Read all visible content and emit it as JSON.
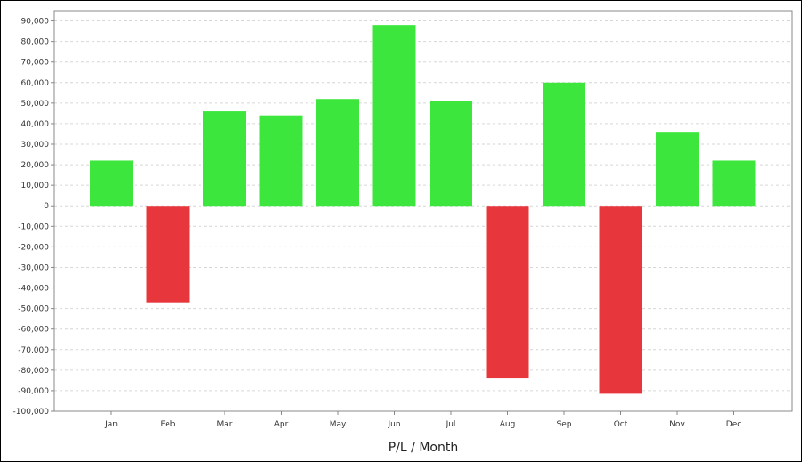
{
  "chart_data": {
    "type": "bar",
    "title": "",
    "xlabel": "P/L / Month",
    "ylabel": "",
    "categories": [
      "Jan",
      "Feb",
      "Mar",
      "Apr",
      "May",
      "Jun",
      "Jul",
      "Aug",
      "Sep",
      "Oct",
      "Nov",
      "Dec"
    ],
    "values": [
      22000,
      -47000,
      46000,
      44000,
      52000,
      88000,
      51000,
      -84000,
      60000,
      -91500,
      36000,
      22000
    ],
    "ylim": [
      -100000,
      95000
    ],
    "yticks": [
      90000,
      80000,
      70000,
      60000,
      50000,
      40000,
      30000,
      20000,
      10000,
      0,
      -10000,
      -20000,
      -30000,
      -40000,
      -50000,
      -60000,
      -70000,
      -80000,
      -90000,
      -100000
    ],
    "ytick_labels": [
      "90,000",
      "80,000",
      "70,000",
      "60,000",
      "50,000",
      "40,000",
      "30,000",
      "20,000",
      "10,000",
      "0",
      "-10,000",
      "-20,000",
      "-30,000",
      "-40,000",
      "-50,000",
      "-60,000",
      "-70,000",
      "-80,000",
      "-90,000",
      "-100,000"
    ],
    "grid": true,
    "colors": {
      "positive": "#3ce63c",
      "negative": "#e8373c",
      "grid": "#d6d6d6"
    }
  }
}
